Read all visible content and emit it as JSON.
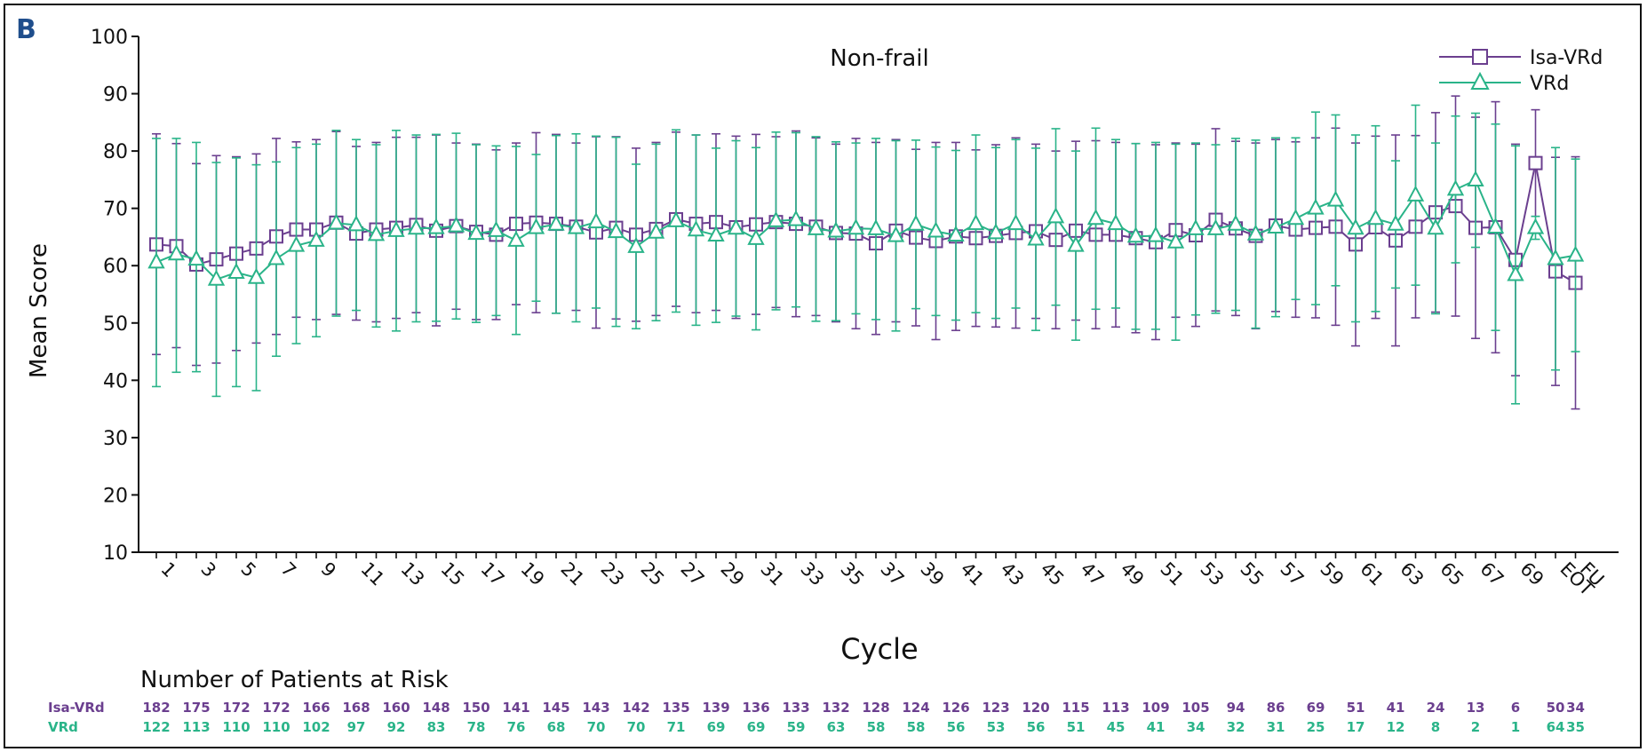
{
  "panel_letter": "B",
  "chart_data": {
    "type": "line",
    "title": "Non-frail",
    "xlabel": "Cycle",
    "ylabel": "Mean Score",
    "ylim": [
      10,
      100
    ],
    "yticks": [
      10,
      20,
      30,
      40,
      50,
      60,
      70,
      80,
      90,
      100
    ],
    "grid": false,
    "legend_position": "top-right",
    "x": [
      "1",
      "2",
      "3",
      "4",
      "5",
      "6",
      "7",
      "8",
      "9",
      "10",
      "11",
      "12",
      "13",
      "14",
      "15",
      "16",
      "17",
      "18",
      "19",
      "20",
      "21",
      "22",
      "23",
      "24",
      "25",
      "26",
      "27",
      "28",
      "29",
      "30",
      "31",
      "32",
      "33",
      "34",
      "35",
      "36",
      "37",
      "38",
      "39",
      "40",
      "41",
      "42",
      "43",
      "44",
      "45",
      "46",
      "47",
      "48",
      "49",
      "50",
      "51",
      "52",
      "53",
      "54",
      "55",
      "56",
      "57",
      "58",
      "59",
      "60",
      "61",
      "62",
      "63",
      "64",
      "65",
      "66",
      "67",
      "68",
      "69",
      "70",
      "EOT",
      "FU"
    ],
    "xtick_labels": [
      "1",
      "3",
      "5",
      "7",
      "9",
      "11",
      "13",
      "15",
      "17",
      "19",
      "21",
      "23",
      "25",
      "27",
      "29",
      "31",
      "33",
      "35",
      "37",
      "39",
      "41",
      "43",
      "45",
      "47",
      "49",
      "51",
      "53",
      "55",
      "57",
      "59",
      "61",
      "63",
      "65",
      "67",
      "69",
      "EOT",
      "FU"
    ],
    "series": [
      {
        "name": "Isa-VRd",
        "color": "#6b3f8f",
        "marker": "square",
        "values": [
          63.7,
          63.4,
          60.2,
          61.1,
          62.1,
          63.0,
          65.1,
          66.3,
          66.3,
          67.5,
          65.6,
          66.3,
          66.6,
          67.1,
          66.1,
          66.9,
          65.9,
          65.4,
          67.3,
          67.5,
          67.3,
          66.8,
          65.8,
          66.6,
          65.4,
          66.4,
          68.1,
          67.3,
          67.6,
          66.7,
          67.2,
          67.6,
          67.3,
          66.8,
          65.7,
          65.6,
          63.9,
          66.1,
          64.9,
          64.3,
          65.1,
          64.8,
          65.2,
          65.7,
          66.0,
          64.5,
          66.1,
          65.4,
          65.4,
          64.8,
          64.1,
          66.2,
          65.3,
          68.0,
          66.5,
          65.2,
          67.0,
          66.3,
          66.6,
          66.8,
          63.7,
          66.7,
          64.4,
          66.8,
          69.3,
          70.4,
          66.6,
          66.7,
          61.0,
          77.9,
          59.0,
          57.0
        ],
        "upper": [
          83.0,
          81.3,
          77.8,
          79.2,
          79.0,
          79.5,
          82.2,
          81.6,
          82.0,
          83.4,
          80.8,
          81.5,
          82.4,
          82.4,
          82.8,
          81.4,
          81.2,
          80.2,
          81.4,
          83.2,
          82.9,
          81.4,
          82.5,
          82.5,
          80.5,
          81.5,
          83.3,
          82.8,
          83.0,
          82.6,
          82.9,
          82.5,
          83.5,
          82.3,
          81.2,
          82.2,
          81.5,
          82.0,
          80.3,
          81.5,
          81.5,
          80.2,
          81.1,
          82.3,
          81.2,
          80.0,
          81.7,
          81.8,
          81.5,
          81.3,
          81.1,
          81.4,
          81.2,
          83.9,
          81.7,
          81.4,
          82.0,
          81.6,
          82.3,
          84.0,
          81.4,
          82.6,
          82.8,
          82.7,
          86.7,
          89.6,
          85.9,
          88.6,
          81.2,
          87.2,
          78.9,
          79.0
        ],
        "lower": [
          44.5,
          45.7,
          42.6,
          43.0,
          45.2,
          46.5,
          48.0,
          51.0,
          50.6,
          51.5,
          50.5,
          50.2,
          50.8,
          51.8,
          49.5,
          52.4,
          50.6,
          50.6,
          53.2,
          51.8,
          51.7,
          52.2,
          49.1,
          50.7,
          50.3,
          51.3,
          52.9,
          51.8,
          52.2,
          50.8,
          51.5,
          52.7,
          51.1,
          51.3,
          50.2,
          49.0,
          48.0,
          50.2,
          49.5,
          47.1,
          48.7,
          49.4,
          49.3,
          49.1,
          50.8,
          49.0,
          50.5,
          49.0,
          49.3,
          48.3,
          47.1,
          51.0,
          49.4,
          52.1,
          51.3,
          49.0,
          52.0,
          51.0,
          50.9,
          49.6,
          46.0,
          50.8,
          46.0,
          50.9,
          51.9,
          51.2,
          47.3,
          44.8,
          40.8,
          68.6,
          39.1,
          35.0
        ]
      },
      {
        "name": "VRd",
        "color": "#2ab489",
        "marker": "triangle",
        "values": [
          60.6,
          62.0,
          61.1,
          57.6,
          58.8,
          57.9,
          61.2,
          63.5,
          64.4,
          67.4,
          67.1,
          65.4,
          66.1,
          66.5,
          66.6,
          66.9,
          65.6,
          66.1,
          64.4,
          66.6,
          67.2,
          66.6,
          67.6,
          65.9,
          63.3,
          65.8,
          67.8,
          66.2,
          65.3,
          66.5,
          64.7,
          67.8,
          68.0,
          66.4,
          66.0,
          66.5,
          66.4,
          65.2,
          67.2,
          66.0,
          65.3,
          67.3,
          65.7,
          67.3,
          64.6,
          68.5,
          63.5,
          68.2,
          67.3,
          65.1,
          65.2,
          64.1,
          66.4,
          66.4,
          67.2,
          65.5,
          66.7,
          68.2,
          70.0,
          71.4,
          66.5,
          68.2,
          67.2,
          72.3,
          66.5,
          73.3,
          74.9,
          66.7,
          58.4,
          66.6,
          61.2,
          61.8
        ],
        "upper": [
          82.2,
          82.2,
          81.5,
          78.0,
          78.8,
          77.6,
          78.1,
          80.6,
          81.2,
          83.6,
          82.0,
          81.1,
          83.6,
          82.8,
          82.9,
          83.1,
          81.1,
          80.9,
          80.8,
          79.4,
          82.7,
          83.0,
          82.6,
          82.4,
          77.7,
          81.2,
          83.7,
          82.8,
          80.5,
          81.8,
          80.6,
          83.3,
          83.2,
          82.5,
          81.6,
          81.4,
          82.2,
          81.8,
          81.9,
          80.7,
          80.1,
          82.8,
          80.6,
          82.0,
          80.5,
          83.9,
          80.0,
          84.0,
          82.0,
          81.3,
          81.5,
          81.2,
          81.4,
          81.1,
          82.2,
          81.9,
          82.3,
          82.3,
          86.8,
          86.3,
          82.8,
          84.4,
          78.3,
          88.0,
          81.4,
          86.1,
          86.6,
          84.7,
          80.9,
          68.6,
          80.6,
          78.6
        ],
        "lower": [
          38.9,
          41.4,
          41.5,
          37.2,
          38.9,
          38.2,
          44.2,
          46.4,
          47.6,
          51.2,
          52.2,
          49.3,
          48.6,
          50.2,
          50.3,
          50.7,
          50.1,
          51.3,
          48.0,
          53.8,
          51.7,
          50.2,
          52.6,
          49.4,
          49.0,
          50.4,
          51.9,
          49.6,
          50.1,
          51.2,
          48.8,
          52.3,
          52.8,
          50.3,
          50.4,
          51.6,
          50.6,
          48.6,
          52.5,
          51.3,
          50.5,
          51.8,
          50.8,
          52.6,
          48.7,
          53.1,
          47.0,
          52.4,
          52.6,
          48.9,
          48.9,
          47.0,
          51.4,
          51.7,
          52.2,
          49.1,
          51.1,
          54.1,
          53.2,
          56.5,
          50.2,
          52.0,
          56.1,
          56.6,
          51.6,
          60.5,
          63.2,
          48.7,
          35.9,
          64.6,
          41.8,
          45.0
        ]
      }
    ],
    "at_risk": {
      "header": "Number of Patients at Risk",
      "rows": [
        {
          "label": "Isa-VRd",
          "color": "#6b3f8f",
          "values": [
            "182",
            "175",
            "172",
            "172",
            "166",
            "168",
            "160",
            "148",
            "150",
            "141",
            "145",
            "143",
            "142",
            "135",
            "139",
            "136",
            "133",
            "132",
            "128",
            "124",
            "126",
            "123",
            "120",
            "115",
            "113",
            "109",
            "105",
            "94",
            "86",
            "69",
            "51",
            "41",
            "24",
            "13",
            "6",
            "50",
            "34"
          ]
        },
        {
          "label": "VRd",
          "color": "#2ab489",
          "values": [
            "122",
            "113",
            "110",
            "110",
            "102",
            "97",
            "92",
            "83",
            "78",
            "76",
            "68",
            "70",
            "70",
            "71",
            "69",
            "69",
            "59",
            "63",
            "58",
            "58",
            "56",
            "53",
            "56",
            "51",
            "45",
            "41",
            "34",
            "32",
            "31",
            "25",
            "17",
            "12",
            "8",
            "2",
            "1",
            "64",
            "35"
          ]
        }
      ]
    }
  }
}
